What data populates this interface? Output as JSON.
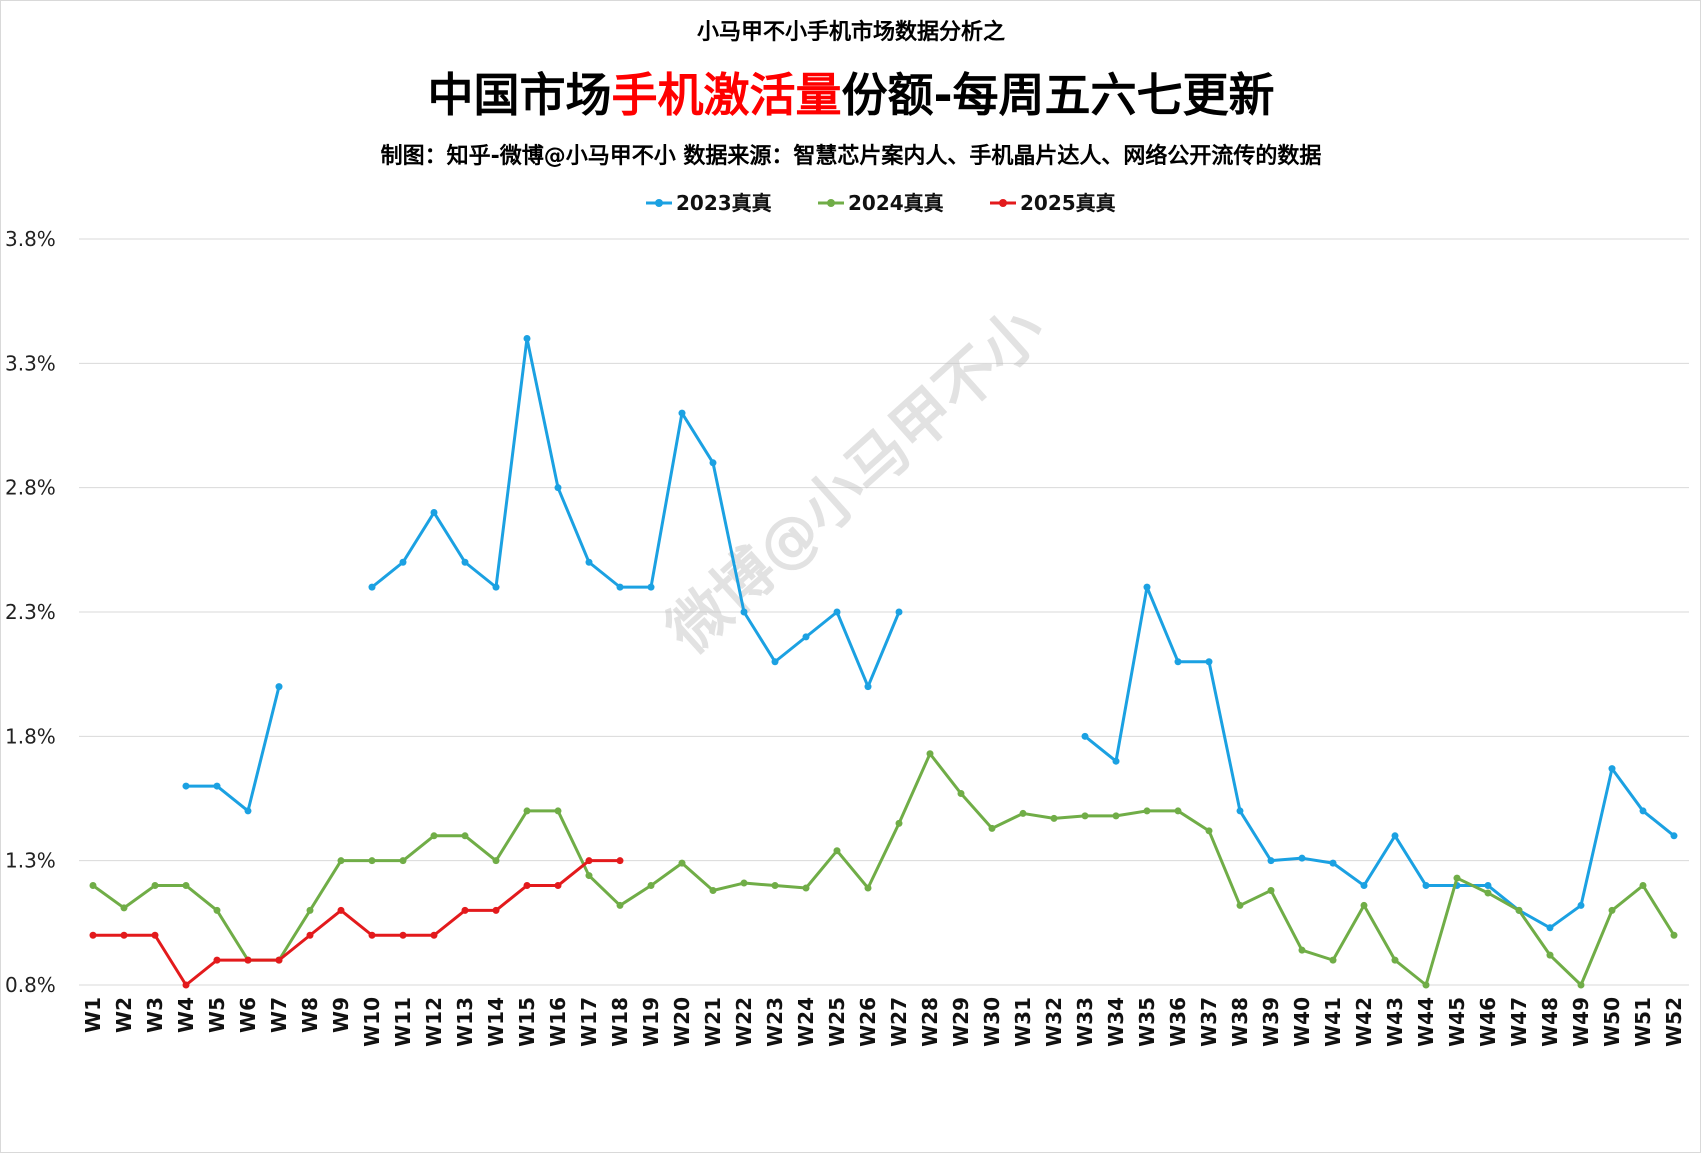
{
  "header": {
    "top": "小马甲不小手机市场数据分析之",
    "title_parts": [
      "中国市场",
      "手机激活量",
      "份额-每周五六七更新"
    ],
    "credit": "制图：知乎-微博@小马甲不小  数据来源：智慧芯片案内人、手机晶片达人、网络公开流传的数据"
  },
  "watermark": "微博@小马甲不小",
  "colors": {
    "title_highlight": "#ff0000",
    "grid": "#d9d9d9"
  },
  "chart_data": {
    "type": "line",
    "y_tick_labels": [
      "0.8%",
      "1.3%",
      "1.8%",
      "2.3%",
      "2.8%",
      "3.3%",
      "3.8%"
    ],
    "ylim": [
      0.8,
      3.8
    ],
    "grid": true,
    "legend_position": "top-center",
    "categories": [
      "W1",
      "W2",
      "W3",
      "W4",
      "W5",
      "W6",
      "W7",
      "W8",
      "W9",
      "W10",
      "W11",
      "W12",
      "W13",
      "W14",
      "W15",
      "W16",
      "W17",
      "W18",
      "W19",
      "W20",
      "W21",
      "W22",
      "W23",
      "W24",
      "W25",
      "W26",
      "W27",
      "W28",
      "W29",
      "W30",
      "W31",
      "W32",
      "W33",
      "W34",
      "W35",
      "W36",
      "W37",
      "W38",
      "W39",
      "W40",
      "W41",
      "W42",
      "W43",
      "W44",
      "W45",
      "W46",
      "W47",
      "W48",
      "W49",
      "W50",
      "W51",
      "W52"
    ],
    "series": [
      {
        "name": "2023真真",
        "color": "#1ba1e2",
        "values": [
          null,
          null,
          null,
          1.6,
          1.6,
          1.5,
          2.0,
          null,
          null,
          2.4,
          2.5,
          2.7,
          2.5,
          2.4,
          3.4,
          2.8,
          2.5,
          2.4,
          2.4,
          3.1,
          2.9,
          2.3,
          2.1,
          2.2,
          2.3,
          2.0,
          2.3,
          null,
          null,
          null,
          null,
          null,
          1.8,
          1.7,
          2.4,
          2.1,
          2.1,
          1.5,
          1.3,
          1.31,
          1.29,
          1.2,
          1.4,
          1.2,
          1.2,
          1.2,
          1.1,
          1.03,
          1.12,
          1.67,
          1.5,
          1.4
        ]
      },
      {
        "name": "2024真真",
        "color": "#70ad47",
        "values": [
          1.2,
          1.11,
          1.2,
          1.2,
          1.1,
          0.9,
          0.9,
          1.1,
          1.3,
          1.3,
          1.3,
          1.4,
          1.4,
          1.3,
          1.5,
          1.5,
          1.24,
          1.12,
          1.2,
          1.29,
          1.18,
          1.21,
          1.2,
          1.19,
          1.34,
          1.19,
          1.45,
          1.73,
          1.57,
          1.43,
          1.49,
          1.47,
          1.48,
          1.48,
          1.5,
          1.5,
          1.42,
          1.12,
          1.18,
          0.94,
          0.9,
          1.12,
          0.9,
          0.8,
          1.23,
          1.17,
          1.1,
          0.92,
          0.8,
          1.1,
          1.2,
          1.0
        ]
      },
      {
        "name": "2025真真",
        "color": "#e31a1c",
        "values": [
          1.0,
          1.0,
          1.0,
          0.8,
          0.9,
          0.9,
          0.9,
          1.0,
          1.1,
          1.0,
          1.0,
          1.0,
          1.1,
          1.1,
          1.2,
          1.2,
          1.3,
          1.3,
          null,
          null,
          null,
          null,
          null,
          null,
          null,
          null,
          null,
          null,
          null,
          null,
          null,
          null,
          null,
          null,
          null,
          null,
          null,
          null,
          null,
          null,
          null,
          null,
          null,
          null,
          null,
          null,
          null,
          null,
          null,
          null,
          null,
          null
        ]
      }
    ]
  }
}
